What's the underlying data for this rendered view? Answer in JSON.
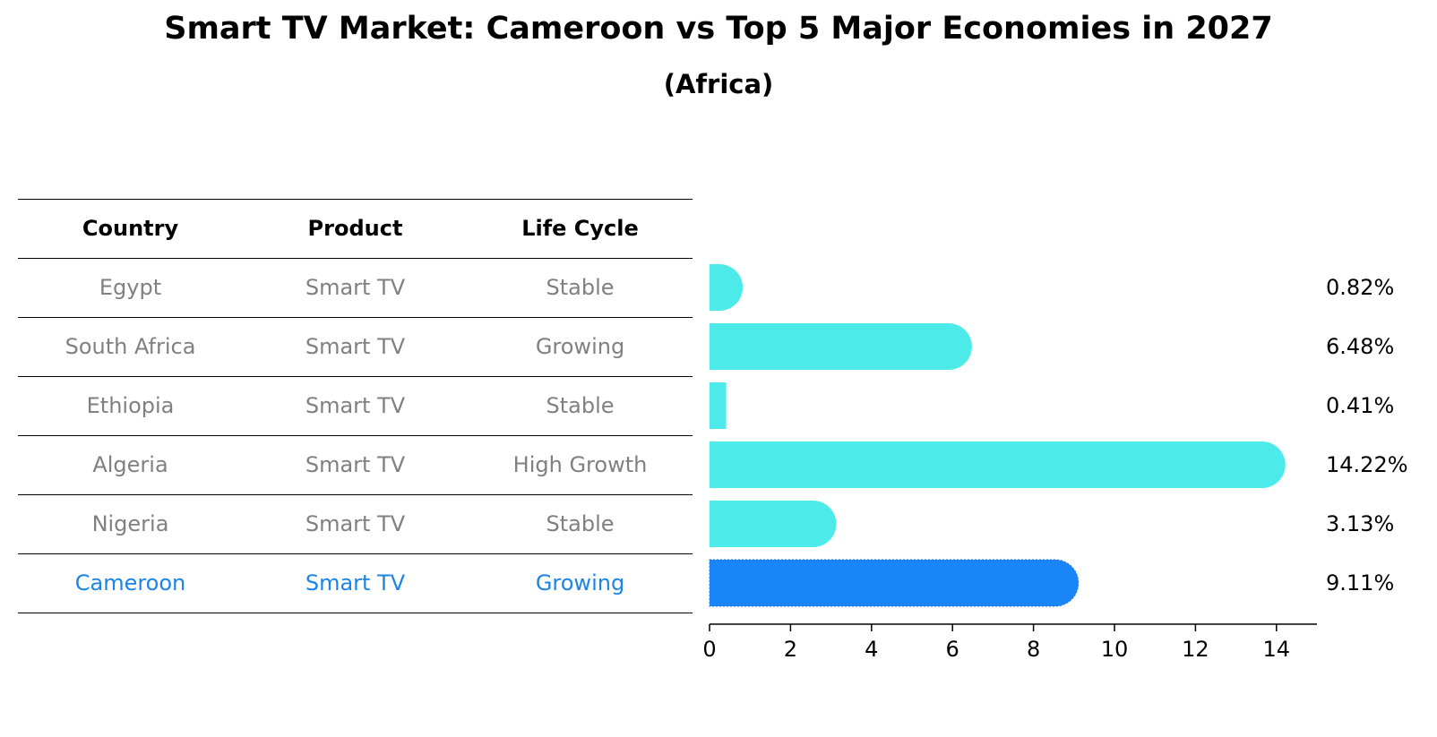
{
  "title": "Smart TV Market: Cameroon vs Top 5 Major Economies in 2027",
  "subtitle": "(Africa)",
  "table": {
    "headers": [
      "Country",
      "Product",
      "Life Cycle"
    ],
    "rows": [
      [
        "Egypt",
        "Smart TV",
        "Stable"
      ],
      [
        "South Africa",
        "Smart TV",
        "Growing"
      ],
      [
        "Ethiopia",
        "Smart TV",
        "Stable"
      ],
      [
        "Algeria",
        "Smart TV",
        "High Growth"
      ],
      [
        "Nigeria",
        "Smart TV",
        "Stable"
      ],
      [
        "Cameroon",
        "Smart TV",
        "Growing"
      ]
    ]
  },
  "chart_data": {
    "type": "bar",
    "orientation": "horizontal",
    "categories": [
      "Egypt",
      "South Africa",
      "Ethiopia",
      "Algeria",
      "Nigeria",
      "Cameroon"
    ],
    "values": [
      0.82,
      6.48,
      0.41,
      14.22,
      3.13,
      9.11
    ],
    "value_labels": [
      "0.82%",
      "6.48%",
      "0.41%",
      "14.22%",
      "3.13%",
      "9.11%"
    ],
    "highlight": "Cameroon",
    "xlim": [
      0,
      15
    ],
    "xticks": [
      0,
      2,
      4,
      6,
      8,
      10,
      12,
      14
    ],
    "xlabel": "",
    "ylabel": "",
    "colors": {
      "bar": "#4deaea",
      "highlight": "#1a85f6"
    }
  }
}
